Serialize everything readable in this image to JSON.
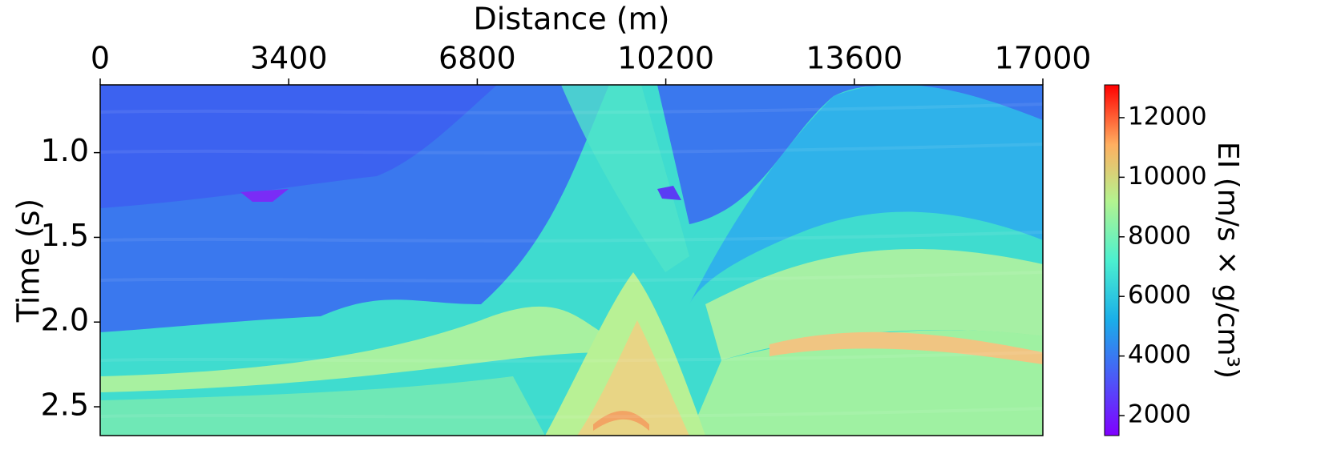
{
  "chart_data": {
    "type": "heatmap",
    "x_label": "Distance (m)",
    "y_label": "Time  (s)",
    "xlim": [
      0,
      17000
    ],
    "xticks": [
      0,
      3400,
      6800,
      10200,
      13600,
      17000
    ],
    "x_axis_position": "top",
    "ylim": [
      0.6,
      2.67
    ],
    "y_inverted": true,
    "yticks": [
      {
        "value": 1,
        "label": "1.0"
      },
      1.5,
      {
        "value": 2,
        "label": "2.0"
      },
      2.5
    ],
    "colorbar": {
      "label": "EI (m/s × g/cm³)",
      "clim": [
        1330,
        13100
      ],
      "ticks": [
        2000,
        4000,
        6000,
        8000,
        10000,
        12000
      ],
      "colormap": "rainbow"
    }
  }
}
